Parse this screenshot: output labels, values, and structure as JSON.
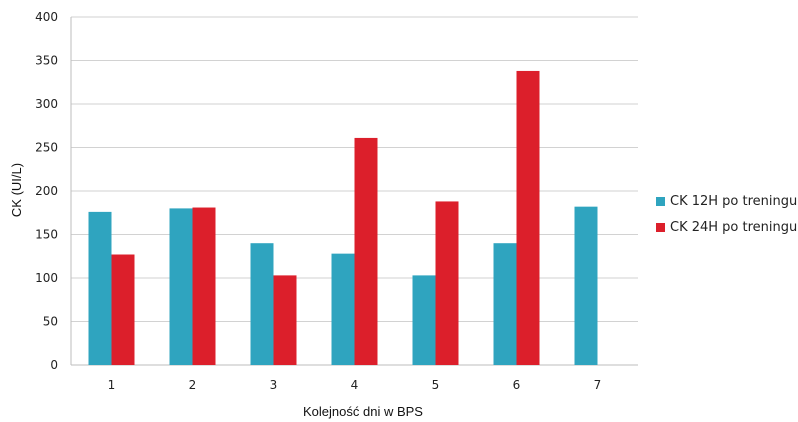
{
  "chart_data": {
    "type": "bar",
    "categories": [
      "1",
      "2",
      "3",
      "4",
      "5",
      "6",
      "7"
    ],
    "series": [
      {
        "name": "CK 12H po treningu",
        "color": "#2fa4bf",
        "values": [
          176,
          180,
          140,
          128,
          103,
          140,
          182
        ]
      },
      {
        "name": "CK 24H po treningu",
        "color": "#dc1f2b",
        "values": [
          127,
          181,
          103,
          261,
          188,
          338,
          null
        ]
      }
    ],
    "title": "",
    "xlabel": "Kolejność dni w  BPS",
    "ylabel": "CK (UI/L)",
    "ylim": [
      0,
      400
    ],
    "yticks": [
      0,
      50,
      100,
      150,
      200,
      250,
      300,
      350,
      400
    ],
    "grid": true,
    "legend_position": "right"
  }
}
